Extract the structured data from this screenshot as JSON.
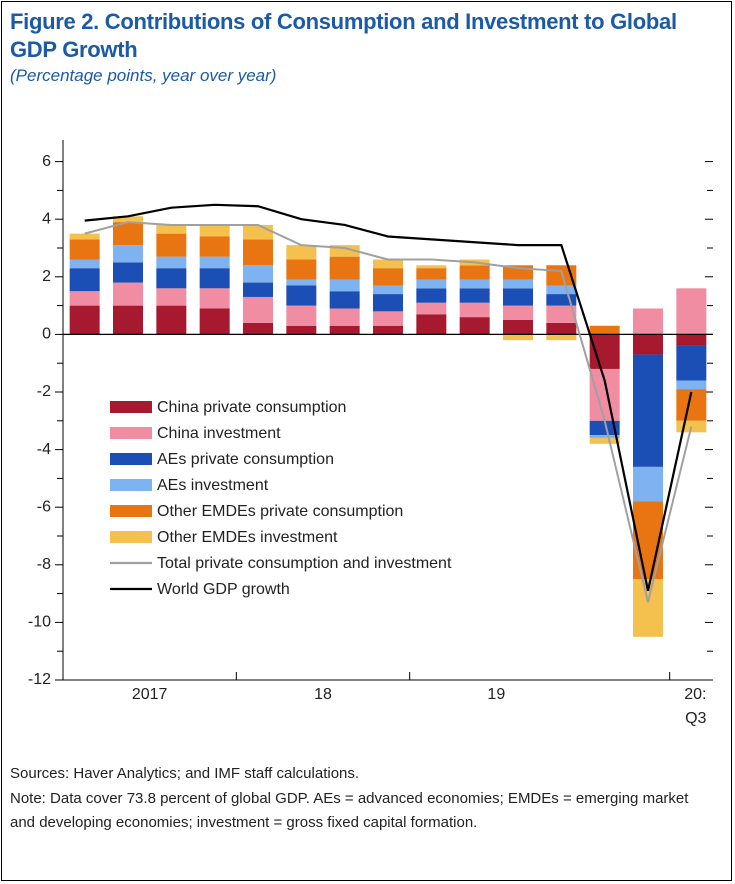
{
  "chart_data": {
    "type": "bar",
    "stacked": true,
    "title": "Figure 2.  Contributions of Consumption and Investment to Global GDP Growth",
    "subtitle": "(Percentage points, year over year)",
    "categories": [
      "2017",
      null,
      null,
      null,
      "18",
      null,
      null,
      null,
      "19",
      null,
      null,
      null,
      null,
      null,
      "20:\nQ3"
    ],
    "ylim": [
      -12,
      6.75
    ],
    "yticks": [
      6,
      4,
      2,
      0,
      -2,
      -4,
      -6,
      -8,
      -10,
      -12
    ],
    "yticks_minor": [
      5,
      3,
      1,
      -1,
      -3,
      -5,
      -7,
      -9,
      -11
    ],
    "series": [
      {
        "name": "China private consumption",
        "color": "#a6192e",
        "values": [
          1.0,
          1.0,
          1.0,
          0.9,
          0.4,
          0.3,
          0.3,
          0.3,
          0.7,
          0.6,
          0.5,
          0.4,
          -1.2,
          -0.7,
          -0.4
        ]
      },
      {
        "name": "China investment",
        "color": "#f08da2",
        "values": [
          0.5,
          0.8,
          0.6,
          0.7,
          0.9,
          0.7,
          0.6,
          0.5,
          0.4,
          0.5,
          0.5,
          0.6,
          -1.8,
          0.9,
          1.6
        ]
      },
      {
        "name": "AEs private consumption",
        "color": "#1b4fb5",
        "values": [
          0.8,
          0.7,
          0.7,
          0.7,
          0.5,
          0.7,
          0.6,
          0.6,
          0.5,
          0.5,
          0.6,
          0.4,
          -0.5,
          -3.9,
          -1.2
        ]
      },
      {
        "name": "AEs investment",
        "color": "#7fb2f0",
        "values": [
          0.3,
          0.6,
          0.4,
          0.4,
          0.6,
          0.2,
          0.4,
          0.3,
          0.3,
          0.3,
          0.3,
          0.3,
          -0.1,
          -1.2,
          -0.3
        ]
      },
      {
        "name": "Other EMDEs private consumption",
        "color": "#e87511",
        "values": [
          0.7,
          0.8,
          0.8,
          0.7,
          0.9,
          0.7,
          0.8,
          0.6,
          0.4,
          0.5,
          0.5,
          0.7,
          0.3,
          -2.7,
          -1.1
        ]
      },
      {
        "name": "Other EMDEs investment",
        "color": "#f4c04e",
        "values": [
          0.2,
          0.2,
          0.3,
          0.4,
          0.5,
          0.5,
          0.4,
          0.3,
          0.1,
          0.2,
          -0.2,
          -0.2,
          -0.2,
          -2.0,
          -0.4
        ]
      },
      {
        "name": "Total private consumption and investment",
        "color": "#a0a0a0",
        "kind": "line",
        "values": [
          3.5,
          3.9,
          3.8,
          3.8,
          3.8,
          3.1,
          3.0,
          2.6,
          2.6,
          2.5,
          2.3,
          2.2,
          -3.0,
          -9.3,
          -3.2
        ]
      },
      {
        "name": "World GDP growth",
        "color": "#000000",
        "kind": "line",
        "values": [
          3.95,
          4.1,
          4.4,
          4.5,
          4.45,
          4.0,
          3.8,
          3.4,
          3.3,
          3.2,
          3.1,
          3.1,
          -1.6,
          -8.9,
          -2.0
        ]
      }
    ],
    "source": "Sources: Haver Analytics; and IMF staff calculations.",
    "note": "Note: Data cover 73.8 percent of global GDP. AEs = advanced economies; EMDEs = emerging market and developing economies; investment = gross fixed capital formation."
  }
}
